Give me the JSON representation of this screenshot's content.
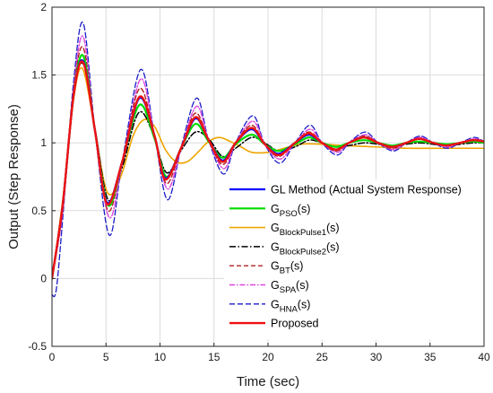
{
  "chart_data": {
    "type": "line",
    "title": "",
    "xlabel": "Time (sec)",
    "ylabel": "Output (Step Response)",
    "xlim": [
      0,
      40
    ],
    "ylim": [
      -0.5,
      2
    ],
    "xticks": [
      0,
      5,
      10,
      15,
      20,
      25,
      30,
      35,
      40
    ],
    "yticks": [
      -0.5,
      0,
      0.5,
      1,
      1.5,
      2
    ],
    "xtick_labels": [
      "0",
      "5",
      "10",
      "15",
      "20",
      "25",
      "30",
      "35",
      "40"
    ],
    "ytick_labels": [
      "-0.5",
      "0",
      "0.5",
      "1",
      "1.5",
      "2"
    ],
    "grid": true,
    "legend_position": "bottom-right",
    "series": [
      {
        "key": "gl",
        "name": "GL Method (Actual System Response)",
        "color": "#0000ff",
        "dash": "solid",
        "width": 2.2,
        "points": [
          [
            0,
            0
          ],
          [
            1,
            0.55
          ],
          [
            2,
            1.35
          ],
          [
            2.9,
            1.6
          ],
          [
            4,
            1.08
          ],
          [
            5.1,
            0.56
          ],
          [
            6.5,
            0.86
          ],
          [
            8.1,
            1.33
          ],
          [
            9.5,
            1.05
          ],
          [
            10.5,
            0.74
          ],
          [
            12,
            0.97
          ],
          [
            13.3,
            1.18
          ],
          [
            14.5,
            1.02
          ],
          [
            15.8,
            0.87
          ],
          [
            17,
            1.0
          ],
          [
            18.5,
            1.1
          ],
          [
            19.7,
            0.99
          ],
          [
            21,
            0.92
          ],
          [
            22.5,
            1.0
          ],
          [
            23.8,
            1.06
          ],
          [
            25,
            1.0
          ],
          [
            26.3,
            0.95
          ],
          [
            27.5,
            1.0
          ],
          [
            28.9,
            1.04
          ],
          [
            30.2,
            1.0
          ],
          [
            31.5,
            0.97
          ],
          [
            32.8,
            1.0
          ],
          [
            34,
            1.03
          ],
          [
            35.3,
            1.0
          ],
          [
            36.5,
            0.98
          ],
          [
            37.8,
            1.0
          ],
          [
            39,
            1.02
          ],
          [
            40,
            1.01
          ]
        ]
      },
      {
        "key": "pso",
        "name": "PSO",
        "color": "#00dd00",
        "dash": "solid",
        "width": 2.2,
        "points": [
          [
            0,
            0
          ],
          [
            1,
            0.55
          ],
          [
            2,
            1.35
          ],
          [
            2.9,
            1.64
          ],
          [
            4,
            1.08
          ],
          [
            5.2,
            0.54
          ],
          [
            6.5,
            0.86
          ],
          [
            8.1,
            1.28
          ],
          [
            9.5,
            1.03
          ],
          [
            10.6,
            0.75
          ],
          [
            12,
            0.97
          ],
          [
            13.3,
            1.14
          ],
          [
            14.5,
            1.01
          ],
          [
            15.8,
            0.89
          ],
          [
            17,
            0.99
          ],
          [
            18.5,
            1.06
          ],
          [
            19.7,
            0.99
          ],
          [
            21,
            0.94
          ],
          [
            22.5,
            0.99
          ],
          [
            23.8,
            1.04
          ],
          [
            25,
            1.0
          ],
          [
            26.3,
            0.97
          ],
          [
            27.5,
            1.0
          ],
          [
            28.9,
            1.02
          ],
          [
            30.2,
            1.0
          ],
          [
            31.5,
            0.98
          ],
          [
            32.8,
            1.0
          ],
          [
            34,
            1.01
          ],
          [
            35.3,
            1.0
          ],
          [
            36.5,
            0.99
          ],
          [
            37.8,
            1.0
          ],
          [
            39,
            1.01
          ],
          [
            40,
            1.0
          ]
        ]
      },
      {
        "key": "bp1",
        "name": "BlockPulse1",
        "color": "#eda500",
        "dash": "solid",
        "width": 1.6,
        "points": [
          [
            0,
            0
          ],
          [
            1,
            0.58
          ],
          [
            2,
            1.32
          ],
          [
            2.8,
            1.55
          ],
          [
            3.8,
            1.18
          ],
          [
            4.8,
            0.72
          ],
          [
            5.5,
            0.62
          ],
          [
            6.5,
            0.78
          ],
          [
            7.5,
            1.05
          ],
          [
            8.5,
            1.17
          ],
          [
            9.5,
            1.12
          ],
          [
            10.5,
            0.95
          ],
          [
            11.5,
            0.86
          ],
          [
            12.5,
            0.86
          ],
          [
            13.5,
            0.93
          ],
          [
            14.5,
            1.01
          ],
          [
            15.5,
            1.04
          ],
          [
            16.5,
            1.01
          ],
          [
            17.5,
            0.97
          ],
          [
            18.5,
            0.93
          ],
          [
            20,
            0.93
          ],
          [
            21.5,
            0.96
          ],
          [
            23,
            0.99
          ],
          [
            25,
            0.99
          ],
          [
            27,
            0.98
          ],
          [
            30,
            0.97
          ],
          [
            33,
            0.96
          ],
          [
            36,
            0.96
          ],
          [
            40,
            0.96
          ]
        ]
      },
      {
        "key": "bp2",
        "name": "BlockPulse2",
        "color": "#000000",
        "dash": "7,2.5,1.5,2.5",
        "width": 1.5,
        "points": [
          [
            0,
            0
          ],
          [
            1,
            0.55
          ],
          [
            2,
            1.35
          ],
          [
            2.9,
            1.58
          ],
          [
            4,
            1.1
          ],
          [
            5.2,
            0.58
          ],
          [
            6.5,
            0.82
          ],
          [
            8,
            1.22
          ],
          [
            9.3,
            1.08
          ],
          [
            10.6,
            0.78
          ],
          [
            12,
            0.95
          ],
          [
            13.3,
            1.08
          ],
          [
            14.5,
            1.03
          ],
          [
            15.8,
            0.9
          ],
          [
            17,
            0.96
          ],
          [
            18.5,
            1.04
          ],
          [
            19.7,
            1.0
          ],
          [
            21,
            0.94
          ],
          [
            22.5,
            0.97
          ],
          [
            23.8,
            1.02
          ],
          [
            25,
            1.0
          ],
          [
            26.3,
            0.97
          ],
          [
            27.5,
            0.98
          ],
          [
            28.9,
            1.0
          ],
          [
            30.2,
            0.99
          ],
          [
            31.5,
            0.98
          ],
          [
            32.8,
            0.99
          ],
          [
            34,
            1.0
          ],
          [
            35.3,
            0.99
          ],
          [
            36.5,
            0.98
          ],
          [
            37.8,
            0.99
          ],
          [
            39,
            1.0
          ],
          [
            40,
            1.0
          ]
        ]
      },
      {
        "key": "bt",
        "name": "BT",
        "color": "#b22222",
        "dash": "5,3",
        "width": 1.4,
        "points": [
          [
            0,
            0
          ],
          [
            1,
            0.52
          ],
          [
            2,
            1.38
          ],
          [
            2.9,
            1.7
          ],
          [
            4,
            1.08
          ],
          [
            5.2,
            0.5
          ],
          [
            6.5,
            0.86
          ],
          [
            8.1,
            1.4
          ],
          [
            9.5,
            1.05
          ],
          [
            10.6,
            0.7
          ],
          [
            12,
            0.97
          ],
          [
            13.3,
            1.22
          ],
          [
            14.5,
            1.02
          ],
          [
            15.8,
            0.84
          ],
          [
            17,
            1.0
          ],
          [
            18.5,
            1.13
          ],
          [
            19.7,
            0.99
          ],
          [
            21,
            0.9
          ],
          [
            22.5,
            1.0
          ],
          [
            23.8,
            1.08
          ],
          [
            25,
            1.0
          ],
          [
            26.3,
            0.94
          ],
          [
            27.5,
            1.0
          ],
          [
            28.9,
            1.05
          ],
          [
            30.2,
            1.0
          ],
          [
            31.5,
            0.96
          ],
          [
            32.8,
            1.0
          ],
          [
            34,
            1.03
          ],
          [
            35.3,
            1.0
          ],
          [
            36.5,
            0.98
          ],
          [
            37.8,
            1.0
          ],
          [
            39,
            1.02
          ],
          [
            40,
            1.01
          ]
        ]
      },
      {
        "key": "spa",
        "name": "SPA",
        "color": "#dd44dd",
        "dash": "6,2,1.5,2",
        "width": 1.4,
        "points": [
          [
            0,
            0
          ],
          [
            1,
            0.5
          ],
          [
            2,
            1.4
          ],
          [
            2.9,
            1.78
          ],
          [
            4,
            1.08
          ],
          [
            5.3,
            0.45
          ],
          [
            6.5,
            0.85
          ],
          [
            8.2,
            1.47
          ],
          [
            9.5,
            1.05
          ],
          [
            10.7,
            0.66
          ],
          [
            12,
            0.97
          ],
          [
            13.4,
            1.27
          ],
          [
            14.5,
            1.02
          ],
          [
            15.9,
            0.81
          ],
          [
            17,
            1.0
          ],
          [
            18.6,
            1.16
          ],
          [
            19.7,
            0.99
          ],
          [
            21.1,
            0.88
          ],
          [
            22.5,
            1.0
          ],
          [
            23.9,
            1.1
          ],
          [
            25,
            1.0
          ],
          [
            26.4,
            0.93
          ],
          [
            27.5,
            1.0
          ],
          [
            29,
            1.06
          ],
          [
            30.2,
            1.0
          ],
          [
            31.6,
            0.95
          ],
          [
            32.8,
            1.0
          ],
          [
            34.1,
            1.04
          ],
          [
            35.3,
            1.0
          ],
          [
            36.6,
            0.97
          ],
          [
            37.8,
            1.0
          ],
          [
            39.1,
            1.03
          ],
          [
            40,
            1.01
          ]
        ]
      },
      {
        "key": "hna",
        "name": "HNA",
        "color": "#1b1bc8",
        "dash": "6,3",
        "width": 1.3,
        "points": [
          [
            0,
            -0.12
          ],
          [
            0.4,
            -0.08
          ],
          [
            1,
            0.45
          ],
          [
            2,
            1.45
          ],
          [
            2.9,
            1.88
          ],
          [
            4,
            1.08
          ],
          [
            5.3,
            0.32
          ],
          [
            6.5,
            0.86
          ],
          [
            8.2,
            1.54
          ],
          [
            9.5,
            1.05
          ],
          [
            10.7,
            0.58
          ],
          [
            12,
            0.98
          ],
          [
            13.4,
            1.33
          ],
          [
            14.5,
            1.02
          ],
          [
            15.9,
            0.77
          ],
          [
            17,
            1.0
          ],
          [
            18.6,
            1.2
          ],
          [
            19.7,
            0.99
          ],
          [
            21.1,
            0.85
          ],
          [
            22.5,
            1.0
          ],
          [
            23.9,
            1.13
          ],
          [
            25,
            1.0
          ],
          [
            26.4,
            0.91
          ],
          [
            27.5,
            1.0
          ],
          [
            29,
            1.08
          ],
          [
            30.2,
            1.0
          ],
          [
            31.6,
            0.94
          ],
          [
            32.8,
            1.0
          ],
          [
            34.1,
            1.05
          ],
          [
            35.3,
            1.0
          ],
          [
            36.6,
            0.96
          ],
          [
            37.8,
            1.0
          ],
          [
            39.1,
            1.04
          ],
          [
            40,
            1.01
          ]
        ]
      },
      {
        "key": "proposed",
        "name": "Proposed",
        "color": "#ee1111",
        "dash": "solid",
        "width": 2.4,
        "points": [
          [
            0,
            0
          ],
          [
            1,
            0.55
          ],
          [
            2,
            1.35
          ],
          [
            2.9,
            1.59
          ],
          [
            4,
            1.08
          ],
          [
            5.1,
            0.55
          ],
          [
            6.5,
            0.86
          ],
          [
            8.1,
            1.34
          ],
          [
            9.5,
            1.05
          ],
          [
            10.5,
            0.73
          ],
          [
            12,
            0.97
          ],
          [
            13.3,
            1.19
          ],
          [
            14.5,
            1.02
          ],
          [
            15.8,
            0.86
          ],
          [
            17,
            1.0
          ],
          [
            18.5,
            1.11
          ],
          [
            19.7,
            0.99
          ],
          [
            21,
            0.91
          ],
          [
            22.5,
            1.0
          ],
          [
            23.8,
            1.07
          ],
          [
            25,
            1.0
          ],
          [
            26.3,
            0.95
          ],
          [
            27.5,
            1.0
          ],
          [
            28.9,
            1.04
          ],
          [
            30.2,
            1.0
          ],
          [
            31.5,
            0.97
          ],
          [
            32.8,
            1.0
          ],
          [
            34,
            1.03
          ],
          [
            35.3,
            1.0
          ],
          [
            36.5,
            0.98
          ],
          [
            37.8,
            1.0
          ],
          [
            39,
            1.02
          ],
          [
            40,
            1.01
          ]
        ]
      }
    ],
    "legend": [
      {
        "key": "gl",
        "main": "GL Method (Actual System Response)",
        "sub": "",
        "suffix": ""
      },
      {
        "key": "pso",
        "main": "G",
        "sub": "PSO",
        "suffix": "(s)"
      },
      {
        "key": "bp1",
        "main": "G",
        "sub": "BlockPulse1",
        "suffix": "(s)"
      },
      {
        "key": "bp2",
        "main": "G",
        "sub": "BlockPulse2",
        "suffix": "(s)"
      },
      {
        "key": "bt",
        "main": "G",
        "sub": "BT",
        "suffix": "(s)"
      },
      {
        "key": "spa",
        "main": "G",
        "sub": "SPA",
        "suffix": "(s)"
      },
      {
        "key": "hna",
        "main": "G",
        "sub": "HNA",
        "suffix": "(s)"
      },
      {
        "key": "proposed",
        "main": "Proposed",
        "sub": "",
        "suffix": ""
      }
    ]
  }
}
